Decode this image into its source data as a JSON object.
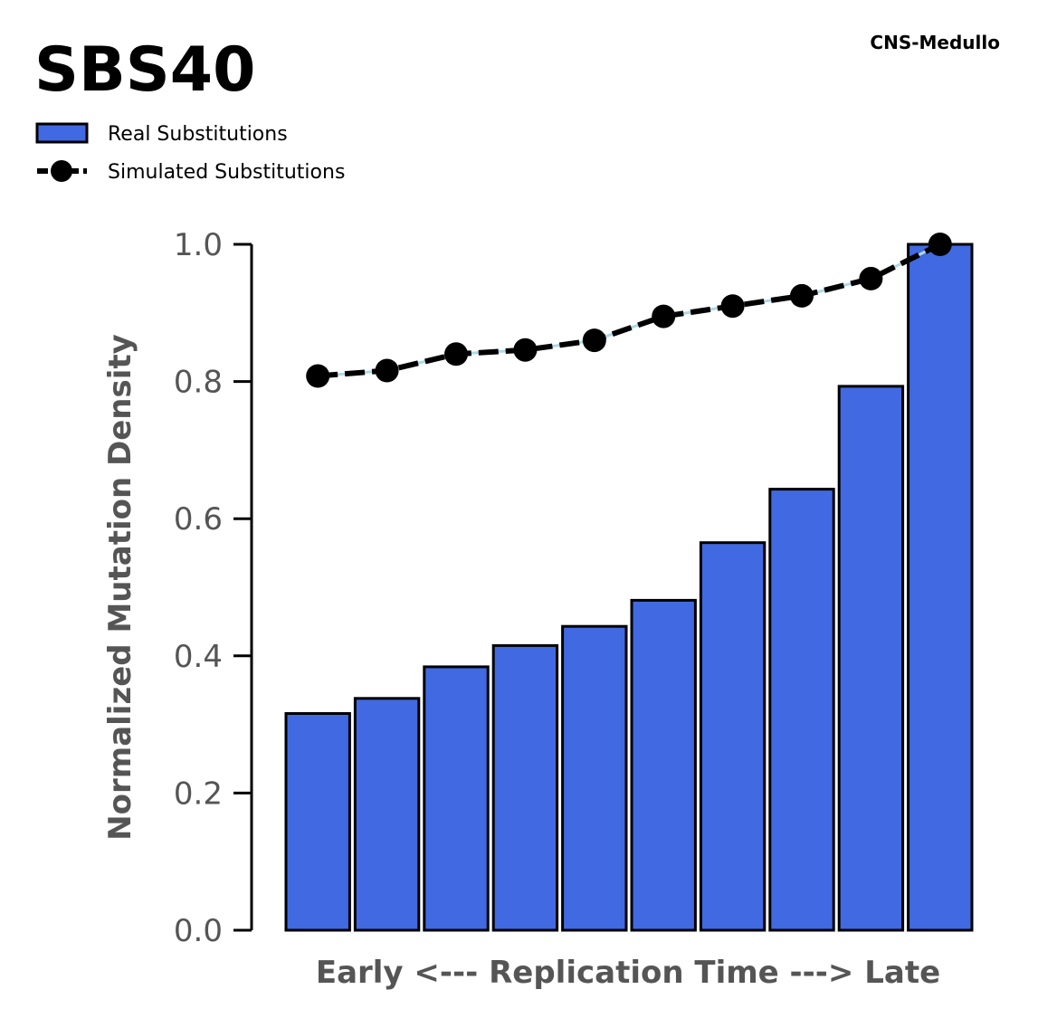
{
  "chart_data": {
    "type": "bar",
    "title": "SBS40",
    "tag": "CNS-Medullo",
    "xlabel": "Early <--- Replication Time ---> Late",
    "ylabel": "Normalized Mutation Density",
    "ylim": [
      0,
      1.0
    ],
    "yticks": [
      "0.0",
      "0.2",
      "0.4",
      "0.6",
      "0.8",
      "1.0"
    ],
    "grid": false,
    "legend_position": "top-left",
    "series": [
      {
        "name": "Real Substitutions",
        "type": "bar",
        "color": "#4169e1",
        "values": [
          0.316,
          0.338,
          0.384,
          0.415,
          0.443,
          0.481,
          0.565,
          0.643,
          0.793,
          1.0
        ]
      },
      {
        "name": "Simulated Substitutions",
        "type": "line",
        "color": "#000000",
        "connector_color": "#add8e6",
        "values": [
          0.808,
          0.816,
          0.84,
          0.846,
          0.86,
          0.895,
          0.91,
          0.925,
          0.95,
          1.0
        ]
      }
    ]
  }
}
